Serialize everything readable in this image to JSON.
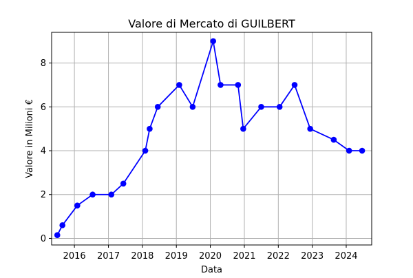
{
  "chart_data": {
    "type": "line",
    "title": "Valore di Mercato di GUILBERT",
    "xlabel": "Data",
    "ylabel": "Valore in Milioni €",
    "xlim": [
      "2015-05-01",
      "2024-10-01"
    ],
    "ylim": [
      -0.3,
      9.4
    ],
    "x_ticks": [
      {
        "value": "2016-01-01",
        "label": "2016"
      },
      {
        "value": "2017-01-01",
        "label": "2017"
      },
      {
        "value": "2018-01-01",
        "label": "2018"
      },
      {
        "value": "2019-01-01",
        "label": "2019"
      },
      {
        "value": "2020-01-01",
        "label": "2020"
      },
      {
        "value": "2021-01-01",
        "label": "2021"
      },
      {
        "value": "2022-01-01",
        "label": "2022"
      },
      {
        "value": "2023-01-01",
        "label": "2023"
      },
      {
        "value": "2024-01-01",
        "label": "2024"
      }
    ],
    "y_ticks": [
      {
        "value": 0,
        "label": "0"
      },
      {
        "value": 2,
        "label": "2"
      },
      {
        "value": 4,
        "label": "4"
      },
      {
        "value": 6,
        "label": "6"
      },
      {
        "value": 8,
        "label": "8"
      }
    ],
    "grid": true,
    "series": [
      {
        "color": "#0000ff",
        "marker": "circle",
        "x": [
          "2015-07-01",
          "2015-08-25",
          "2016-02-01",
          "2016-07-15",
          "2017-02-01",
          "2017-06-10",
          "2018-02-01",
          "2018-03-20",
          "2018-06-15",
          "2019-02-01",
          "2019-06-25",
          "2020-02-01",
          "2020-04-20",
          "2020-10-25",
          "2020-12-20",
          "2021-07-01",
          "2022-01-15",
          "2022-06-25",
          "2022-12-10",
          "2023-08-20",
          "2024-02-01",
          "2024-06-20"
        ],
        "values": [
          0.15,
          0.6,
          1.5,
          2,
          2,
          2.5,
          4,
          5,
          6,
          7,
          6,
          9,
          7,
          7,
          5,
          6,
          6,
          7,
          5,
          4.5,
          4,
          4
        ]
      }
    ]
  }
}
